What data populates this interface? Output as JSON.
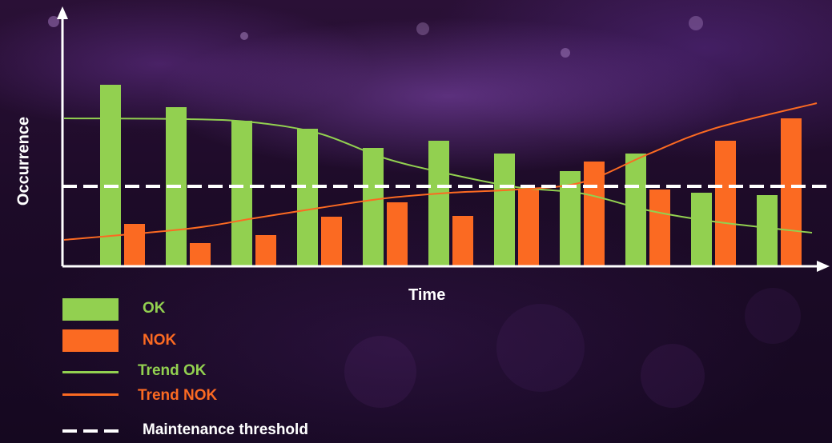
{
  "chart_data": {
    "type": "bar",
    "title": "",
    "xlabel": "Time",
    "ylabel": "Occurrence",
    "categories": [
      "",
      "",
      "",
      "",
      "",
      "",
      "",
      "",
      "",
      "",
      ""
    ],
    "series": [
      {
        "name": "OK",
        "color": "#92d050",
        "values": [
          227,
          199,
          182,
          172,
          148,
          157,
          141,
          119,
          141,
          92,
          89
        ]
      },
      {
        "name": "NOK",
        "color": "#fb6a22",
        "values": [
          53,
          29,
          39,
          62,
          80,
          63,
          96,
          131,
          96,
          157,
          185
        ]
      }
    ],
    "trend_ok": {
      "name": "Trend OK",
      "color": "#92d050",
      "values": [
        185,
        184,
        180,
        166,
        135,
        115,
        99,
        91,
        70,
        56,
        42
      ]
    },
    "trend_nok": {
      "name": "Trend NOK",
      "color": "#fb6a22",
      "values": [
        33,
        47,
        60,
        73,
        85,
        92,
        96,
        105,
        140,
        172,
        204
      ]
    },
    "threshold": {
      "name": "Maintenance threshold",
      "value": 100,
      "color": "#ffffff"
    },
    "ylim": [
      0,
      320
    ],
    "grid": false,
    "legend_position": "bottom-left"
  },
  "legend": {
    "ok": "OK",
    "nok": "NOK",
    "trend_ok": "Trend OK",
    "trend_nok": "Trend NOK",
    "threshold": "Maintenance threshold"
  }
}
